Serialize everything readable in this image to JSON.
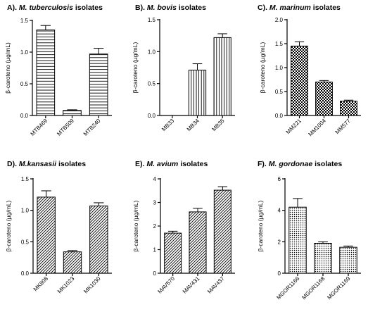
{
  "chart_data": [
    {
      "type": "bar",
      "title_prefix": "A). ",
      "title_species": "M. tuberculosis",
      "title_suffix": " isolates",
      "ylabel": "β-caroteno (µg/mL)",
      "categories": [
        "MTB469",
        "MTB509",
        "MTB240"
      ],
      "values": [
        1.35,
        0.08,
        0.97
      ],
      "errors": [
        0.07,
        0.01,
        0.09
      ],
      "ylim": [
        0,
        1.5
      ],
      "yticks": [
        0.0,
        0.5,
        1.0,
        1.5
      ],
      "ytick_labels": [
        "0.0",
        "0.5",
        "1.0",
        "1.5"
      ],
      "pattern": "horizontal-lines"
    },
    {
      "type": "bar",
      "title_prefix": "B). ",
      "title_species": "M. bovis",
      "title_suffix": " isolates",
      "ylabel": "β-caroteno (µg/mL)",
      "categories": [
        "MB33",
        "MB34",
        "MB35"
      ],
      "values": [
        0.0,
        0.71,
        1.22
      ],
      "errors": [
        0.0,
        0.1,
        0.06
      ],
      "ylim": [
        0,
        1.5
      ],
      "yticks": [
        0.0,
        0.5,
        1.0,
        1.5
      ],
      "ytick_labels": [
        "0.0",
        "0.5",
        "1.0",
        "1.5"
      ],
      "pattern": "vertical-lines"
    },
    {
      "type": "bar",
      "title_prefix": "C). ",
      "title_species": "M. marinum",
      "title_suffix": " isolates",
      "ylabel": "β-caroteno (µg/mL)",
      "categories": [
        "MM221",
        "MM1004",
        "MM577"
      ],
      "values": [
        1.45,
        0.7,
        0.3
      ],
      "errors": [
        0.09,
        0.03,
        0.02
      ],
      "ylim": [
        0,
        2.0
      ],
      "yticks": [
        0.0,
        0.5,
        1.0,
        1.5,
        2.0
      ],
      "ytick_labels": [
        "0.0",
        "0.5",
        "1.0",
        "1.5",
        "2.0"
      ],
      "pattern": "checker"
    },
    {
      "type": "bar",
      "title_prefix": "D). ",
      "title_species": "M.kansasii",
      "title_suffix": " isolates",
      "ylabel": "β-caroteno (µg/mL)",
      "categories": [
        "MK808",
        "MK1023",
        "MK1030"
      ],
      "values": [
        1.21,
        0.34,
        1.07
      ],
      "errors": [
        0.1,
        0.02,
        0.05
      ],
      "ylim": [
        0,
        1.5
      ],
      "yticks": [
        0.0,
        0.5,
        1.0,
        1.5
      ],
      "ytick_labels": [
        "0.0",
        "0.5",
        "1.0",
        "1.5"
      ],
      "pattern": "diagonal-lines"
    },
    {
      "type": "bar",
      "title_prefix": "E). ",
      "title_species": "M. avium",
      "title_suffix": " isolates",
      "ylabel": "β-caroteno (µg/mL)",
      "categories": [
        "MAV570",
        "MAV431",
        "MAV437"
      ],
      "values": [
        1.7,
        2.6,
        3.52
      ],
      "errors": [
        0.08,
        0.15,
        0.15
      ],
      "ylim": [
        0,
        4
      ],
      "yticks": [
        0,
        1,
        2,
        3,
        4
      ],
      "ytick_labels": [
        "0",
        "1",
        "2",
        "3",
        "4"
      ],
      "pattern": "diagonal-lines"
    },
    {
      "type": "bar",
      "title_prefix": "F). ",
      "title_species": "M. gordonae",
      "title_suffix": " isolates",
      "ylabel": "β-caroteno (µg/mL)",
      "categories": [
        "MGOR1166",
        "MGOR1168",
        "MGOR1169"
      ],
      "values": [
        4.2,
        1.9,
        1.65
      ],
      "errors": [
        0.55,
        0.1,
        0.08
      ],
      "ylim": [
        0,
        6
      ],
      "yticks": [
        0,
        2,
        4,
        6
      ],
      "ytick_labels": [
        "0",
        "2",
        "4",
        "6"
      ],
      "pattern": "dots"
    }
  ]
}
